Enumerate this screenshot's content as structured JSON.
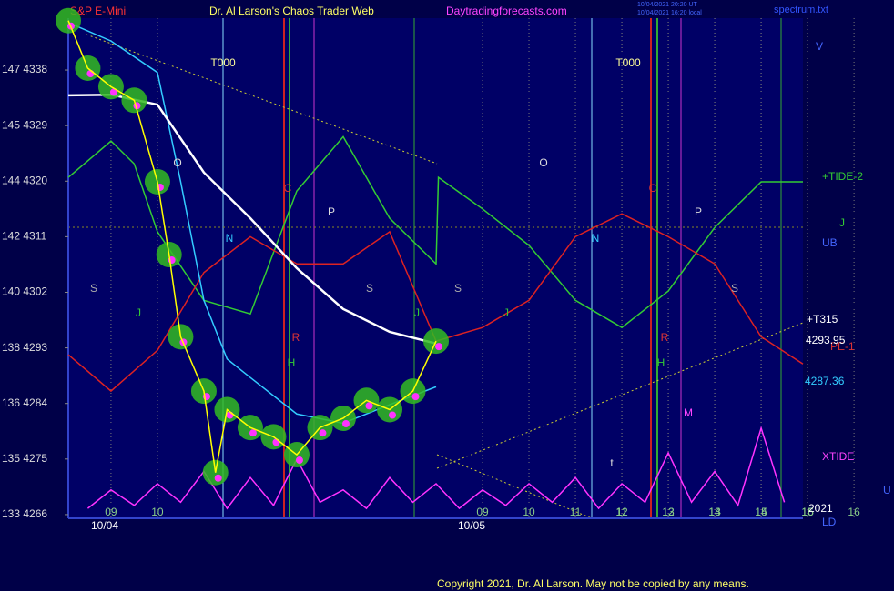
{
  "chart_data": {
    "type": "line",
    "header": {
      "instrument": "S&P E-Mini",
      "title": "Dr. Al Larson's Chaos Trader Web",
      "site": "Daytradingforecasts.com",
      "file": "spectrum.txt",
      "stamp1": "10/04/2021 20:20 UT",
      "stamp2": "10/04/2021 16:20 local"
    },
    "xlim": [
      -0.92,
      14.9
    ],
    "xticks": [
      {
        "value": 0,
        "label": "09"
      },
      {
        "value": 1,
        "label": "10"
      },
      11,
      12,
      13,
      14,
      15,
      16,
      {
        "value": 8,
        "label": "09"
      },
      {
        "value": 9,
        "label": "10"
      },
      {
        "value": 10,
        "label": "11"
      },
      {
        "value": 11,
        "label": "12"
      },
      {
        "value": 12,
        "label": "13"
      },
      {
        "value": 13,
        "label": "14"
      },
      {
        "value": 14,
        "label": "15"
      },
      {
        "value": 15,
        "label": "16"
      }
    ],
    "dates": [
      "10/04",
      "10/05"
    ],
    "ylim": [
      4265.4,
      4346.4
    ],
    "yticks": [
      {
        "value": 4338,
        "label": "147 4338"
      },
      {
        "value": 4329,
        "label": "145 4329"
      },
      {
        "value": 4320,
        "label": "144 4320"
      },
      {
        "value": 4311,
        "label": "142 4311"
      },
      {
        "value": 4302,
        "label": "140 4302"
      },
      {
        "value": 4293,
        "label": "138 4293"
      },
      {
        "value": 4284,
        "label": "136 4284"
      },
      {
        "value": 4275,
        "label": "135 4275"
      },
      {
        "value": 4266,
        "label": "133 4266"
      }
    ],
    "series": [
      {
        "name": "XTIDE",
        "color": "#ff33ff",
        "x": [
          -0.5,
          0,
          0.5,
          1,
          1.5,
          2,
          2.5,
          3,
          3.5,
          4,
          4.5,
          5,
          5.5,
          6,
          6.5,
          7,
          7.5,
          8,
          8.5,
          9,
          9.5,
          10,
          10.5,
          11,
          11.5,
          12,
          12.5,
          13,
          13.5,
          14,
          14.5
        ],
        "values": [
          4267,
          4270,
          4267.5,
          4271,
          4268,
          4273,
          4267,
          4272,
          4267.5,
          4275,
          4268,
          4270,
          4267,
          4272,
          4268,
          4271,
          4267,
          4270,
          4267.5,
          4271,
          4268,
          4272,
          4267,
          4271,
          4268,
          4276,
          4268,
          4273,
          4267.5,
          4280,
          4268
        ]
      },
      {
        "name": "+TIDE-2",
        "color": "#33cc33",
        "x": [
          -0.92,
          0,
          0.5,
          1,
          2,
          3,
          4,
          5,
          6,
          7,
          7.05,
          8,
          9,
          10,
          11,
          12,
          13,
          14,
          14.9
        ],
        "values": [
          4320.6,
          4326.5,
          4322.8,
          4311.8,
          4300.7,
          4298.5,
          4318.4,
          4327.2,
          4314,
          4306.6,
          4320.6,
          4315.5,
          4309.6,
          4300.7,
          4296.3,
          4302.2,
          4312.5,
          4319.9,
          4319.9
        ]
      },
      {
        "name": "PE-1",
        "color": "#dd2222",
        "x": [
          -0.92,
          0,
          1,
          2,
          3,
          4,
          5,
          6,
          7,
          8,
          9,
          10,
          11,
          12,
          13,
          14,
          14.9
        ],
        "values": [
          4291.9,
          4286,
          4292.6,
          4305.2,
          4311,
          4306.6,
          4306.6,
          4311.8,
          4294.1,
          4296.3,
          4300.7,
          4311,
          4314.7,
          4311,
          4306.6,
          4294.8,
          4290.4
        ]
      },
      {
        "name": "4287.36",
        "color": "#33ccff",
        "x": [
          -0.92,
          0,
          1,
          1.5,
          2,
          2.5,
          3,
          4,
          5,
          6,
          7
        ],
        "values": [
          4345.7,
          4342.7,
          4337.6,
          4319.9,
          4300.7,
          4291.2,
          4288.2,
          4282.3,
          4280.8,
          4283.8,
          4286.7
        ]
      },
      {
        "name": "4293.95",
        "color": "#ffffff",
        "x": [
          -0.92,
          0,
          1,
          2,
          3,
          4,
          5,
          6,
          7
        ],
        "values": [
          4333.9,
          4334,
          4332.4,
          4321.4,
          4314,
          4305.9,
          4299.3,
          4295.6,
          4293.7
        ]
      },
      {
        "name": "S&P E-Mini",
        "color": "#ffff00",
        "x": [
          -0.92,
          -0.5,
          0,
          0.5,
          1,
          1.25,
          1.5,
          2,
          2.25,
          2.5,
          3,
          3.5,
          4,
          4.5,
          5,
          5.5,
          6,
          6.5,
          7
        ],
        "values": [
          4346,
          4338.3,
          4335.3,
          4333.1,
          4319.9,
          4308.1,
          4294.8,
          4286,
          4272.8,
          4283,
          4280.1,
          4278.6,
          4275.7,
          4280.1,
          4281.6,
          4284.5,
          4283,
          4286,
          4294.1
        ]
      }
    ],
    "annotations": [
      "T000",
      "T000",
      "O",
      "O",
      "N",
      "N",
      "S",
      "S",
      "S",
      "S",
      "P",
      "P",
      "R",
      "R",
      "H",
      "H",
      "C",
      "C",
      "M",
      "t",
      "J",
      "J",
      "J"
    ],
    "right_labels": [
      "V",
      "+TIDE-2",
      "J",
      "UB",
      "+T315",
      "PE-1",
      "XTIDE",
      "U",
      "2021",
      "LD"
    ],
    "copyright": "Copyright 2021, Dr. Al Larson. May not be copied by any means."
  }
}
